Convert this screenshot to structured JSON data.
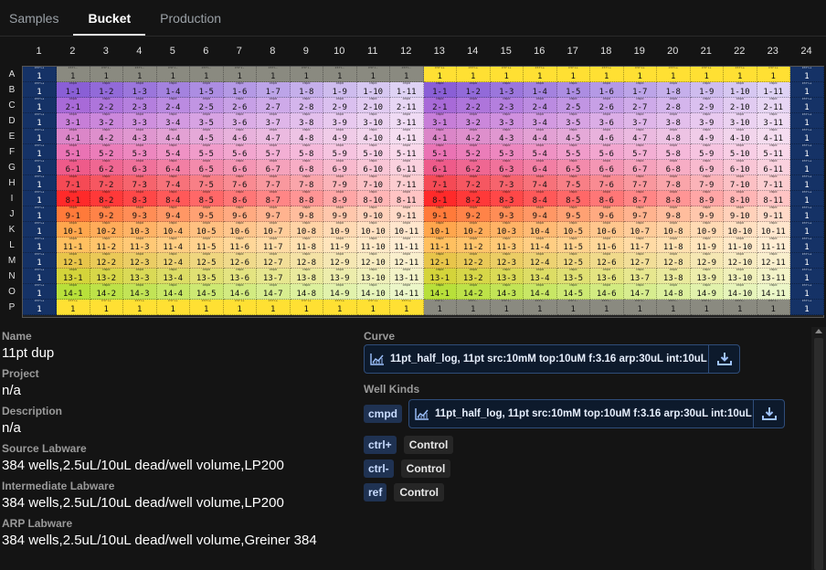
{
  "tabs": [
    {
      "label": "Samples",
      "active": false
    },
    {
      "label": "Bucket",
      "active": true
    },
    {
      "label": "Production",
      "active": false
    }
  ],
  "plate": {
    "columns": [
      "1",
      "2",
      "3",
      "4",
      "5",
      "6",
      "7",
      "8",
      "9",
      "10",
      "11",
      "12",
      "13",
      "14",
      "15",
      "16",
      "17",
      "18",
      "19",
      "20",
      "21",
      "22",
      "23",
      "24"
    ],
    "rows": [
      "A",
      "B",
      "C",
      "D",
      "E",
      "F",
      "G",
      "H",
      "I",
      "J",
      "K",
      "L",
      "M",
      "N",
      "O",
      "P"
    ],
    "control_value": "1",
    "outer_column_kind": "ctrl+",
    "outer_row_kind": "ref",
    "well_kind": "cmpd",
    "left_block_kind_top": "ctrl-",
    "right_block_kind_top": "ctrl+",
    "colors": {
      "outer_column": "#153266",
      "gray_band": "#8a8a80",
      "yellow_band": "#ffe033",
      "row_colors": [
        "#8a5fd6",
        "#a86ad8",
        "#c77ed8",
        "#db86c8",
        "#ea73b4",
        "#ee5b8a",
        "#f54a55",
        "#ff2a2a",
        "#ff7a3a",
        "#ffa64d",
        "#ffc060",
        "#e8c54a",
        "#d4d43a",
        "#b8e03a",
        "#86f028"
      ]
    }
  },
  "details": {
    "name_label": "Name",
    "name_value": "11pt dup",
    "project_label": "Project",
    "project_value": "n/a",
    "description_label": "Description",
    "description_value": "n/a",
    "source_label": "Source Labware",
    "source_value": "384 wells,2.5uL/10uL dead/well volume,LP200",
    "intermediate_label": "Intermediate Labware",
    "intermediate_value": "384 wells,2.5uL/10uL dead/well volume,LP200",
    "arp_label": "ARP Labware",
    "arp_value": "384 wells,2.5uL/10uL dead/well volume,Greiner 384"
  },
  "curve": {
    "label": "Curve",
    "text": "11pt_half_log, 11pt src:10mM top:10uM f:3.16 arp:30uL int:10uL"
  },
  "well_kinds": {
    "label": "Well Kinds",
    "cmpd_tag": "cmpd",
    "cmpd_curve": "11pt_half_log, 11pt src:10mM top:10uM f:3.16 arp:30uL int:10uL",
    "items": [
      {
        "tag": "ctrl+",
        "value": "Control"
      },
      {
        "tag": "ctrl-",
        "value": "Control"
      },
      {
        "tag": "ref",
        "value": "Control"
      }
    ]
  },
  "icons": {
    "chart": "line-chart-icon",
    "download": "download-icon"
  }
}
